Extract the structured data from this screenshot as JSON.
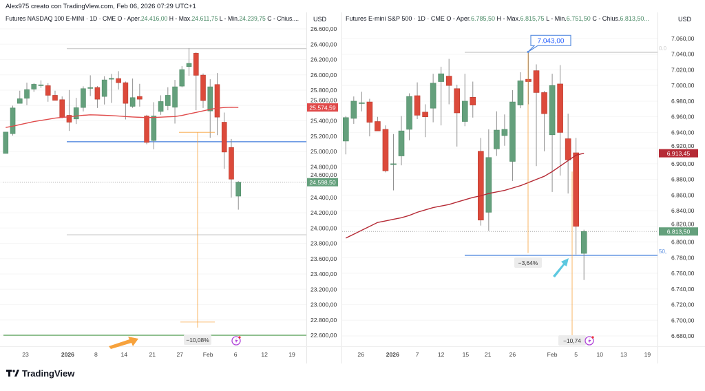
{
  "title": "Alex975 creato con TradingView.com, Feb 06, 2026 07:29 UTC+1",
  "brand": "TradingView",
  "colors": {
    "up": "#64a07c",
    "down": "#dc4a3b",
    "ma_left": "#e04a4a",
    "ma_right": "#b52a35",
    "hline_blue": "#5b8fe0",
    "hline_gray": "#c8c8c8",
    "hline_green": "#6aaa6a",
    "orange": "#f7a23c",
    "cyan": "#5cc8e0"
  },
  "chart_data": [
    {
      "type": "candlestick",
      "symbol": "Futures NASDAQ 100 E-MINI · 1D · CME",
      "ohlc_labels": {
        "o": "O - Aper.",
        "o_val": "24.416,00",
        "h": "H - Max.",
        "h_val": "24.611,75",
        "l": "L - Min.",
        "l_val": "24.239,75",
        "c": "C - Chius...."
      },
      "currency": "USD",
      "ylim": [
        22600,
        26600
      ],
      "y_ticks": [
        "26.600,00",
        "26.400,00",
        "26.200,00",
        "26.000,00",
        "25.800,00",
        "25.600,00",
        "25.400,00",
        "25.200,00",
        "25.000,00",
        "24.800,00",
        "24.600,00",
        "24.400,00",
        "24.200,00",
        "24.000,00",
        "23.800,00",
        "23.600,00",
        "23.400,00",
        "23.200,00",
        "23.000,00",
        "22.800,00",
        "22.600,00"
      ],
      "x_ticks": [
        {
          "label": "23",
          "idx": 2.8,
          "bold": false
        },
        {
          "label": "2026",
          "idx": 8.8,
          "bold": true
        },
        {
          "label": "8",
          "idx": 12.8,
          "bold": false
        },
        {
          "label": "14",
          "idx": 16.8,
          "bold": false
        },
        {
          "label": "21",
          "idx": 20.8,
          "bold": false
        },
        {
          "label": "27",
          "idx": 24.7,
          "bold": false
        },
        {
          "label": "Feb",
          "idx": 28.7,
          "bold": false
        },
        {
          "label": "6",
          "idx": 32.6,
          "bold": false
        },
        {
          "label": "12",
          "idx": 36.7,
          "bold": false
        },
        {
          "label": "19",
          "idx": 40.6,
          "bold": false
        }
      ],
      "candles": [
        [
          24974,
          25253,
          24974,
          25253
        ],
        [
          25232,
          25598,
          25208,
          25568
        ],
        [
          25628,
          25793,
          25628,
          25688
        ],
        [
          25694,
          25898,
          25604,
          25808
        ],
        [
          25814,
          25892,
          25778,
          25877
        ],
        [
          25868,
          25928,
          25829,
          25870
        ],
        [
          25859,
          25892,
          25649,
          25733
        ],
        [
          25733,
          25793,
          25667,
          25667
        ],
        [
          25676,
          25718,
          25433,
          25448
        ],
        [
          25472,
          25802,
          25268,
          25382
        ],
        [
          25424,
          25700,
          25358,
          25571
        ],
        [
          25574,
          25850,
          25523,
          25820
        ],
        [
          25830,
          25994,
          25724,
          25834
        ],
        [
          25835,
          25853,
          25568,
          25682
        ],
        [
          25718,
          25982,
          25613,
          25934
        ],
        [
          25950,
          26012,
          25634,
          25954
        ],
        [
          25952,
          26048,
          25808,
          25898
        ],
        [
          25898,
          25913,
          25418,
          25628
        ],
        [
          25589,
          25952,
          25568,
          25703
        ],
        [
          25718,
          25883,
          25586,
          25682
        ],
        [
          25463,
          25478,
          25094,
          25118
        ],
        [
          25142,
          25643,
          25028,
          25463
        ],
        [
          25523,
          25733,
          25478,
          25652
        ],
        [
          25598,
          25838,
          25538,
          25733
        ],
        [
          25577,
          25934,
          25364,
          25844
        ],
        [
          25853,
          26114,
          25838,
          26069
        ],
        [
          26108,
          26348,
          25988,
          26150
        ],
        [
          26282,
          26294,
          25538,
          25994
        ],
        [
          25997,
          26018,
          25568,
          25664
        ],
        [
          25529,
          25943,
          25178,
          25844
        ],
        [
          25874,
          26024,
          25214,
          25448
        ],
        [
          25382,
          25508,
          24773,
          24992
        ],
        [
          25052,
          25163,
          24398,
          24638
        ],
        [
          24416,
          24611.75,
          24239.75,
          24598.5
        ]
      ],
      "ma": [
        25313,
        25330,
        25350,
        25370,
        25390,
        25405,
        25420,
        25435,
        25445,
        25452,
        25462,
        25472,
        25478,
        25476,
        25472,
        25468,
        25462,
        25456,
        25450,
        25446,
        25442,
        25444,
        25448,
        25452,
        25456,
        25470,
        25490,
        25510,
        25530,
        25550,
        25565,
        25574,
        25577,
        25574.59
      ],
      "last_price": "24.598,50",
      "last_value": 24598.5,
      "ma_label": "25.574,59",
      "ma_value": 25574.59,
      "hlines": [
        {
          "value": 26342,
          "color": "gray"
        },
        {
          "value": 25127,
          "color": "blue"
        },
        {
          "value": 23912,
          "color": "gray"
        },
        {
          "value": 22600,
          "color": "green",
          "full": true
        }
      ],
      "measure": {
        "label": "−10,08%",
        "from": 25250,
        "to": 22700
      }
    },
    {
      "type": "candlestick",
      "symbol": "Futures E-mini S&P 500 · 1D · CME",
      "ohlc_labels": {
        "o": "O - Aper.",
        "o_val": "6.785,50",
        "h": "H - Max.",
        "h_val": "6.815,75",
        "l": "L - Min.",
        "l_val": "6.751,50",
        "c": "C - Chius.",
        "c_val": "6.813,50..."
      },
      "currency": "USD",
      "ylim": [
        6680,
        7060
      ],
      "y_ticks": [
        "7.060,00",
        "7.040,00",
        "7.020,00",
        "7.000,00",
        "6.980,00",
        "6.960,00",
        "6.940,00",
        "6.920,00",
        "6.900,00",
        "6.880,00",
        "6.860,00",
        "6.840,00",
        "6.820,00",
        "6.800,00",
        "6.780,00",
        "6.760,00",
        "6.740,00",
        "6.720,00",
        "6.700,00",
        "6.680,00"
      ],
      "x_ticks": [
        {
          "label": "26",
          "idx": 1.9,
          "bold": false
        },
        {
          "label": "2026",
          "idx": 5.9,
          "bold": true
        },
        {
          "label": "7",
          "idx": 9,
          "bold": false
        },
        {
          "label": "12",
          "idx": 12,
          "bold": false
        },
        {
          "label": "15",
          "idx": 15.1,
          "bold": false
        },
        {
          "label": "21",
          "idx": 17.9,
          "bold": false
        },
        {
          "label": "26",
          "idx": 21,
          "bold": false
        },
        {
          "label": "Feb",
          "idx": 26,
          "bold": false
        },
        {
          "label": "5",
          "idx": 29,
          "bold": false
        },
        {
          "label": "10",
          "idx": 32,
          "bold": false
        },
        {
          "label": "13",
          "idx": 35,
          "bold": false
        },
        {
          "label": "19",
          "idx": 38,
          "bold": false
        }
      ],
      "candles": [
        [
          6929,
          6961,
          6912,
          6959
        ],
        [
          6958,
          6986,
          6951,
          6980
        ],
        [
          6978,
          6992,
          6967,
          6978
        ],
        [
          6979,
          6983,
          6935,
          6953
        ],
        [
          6954,
          6960,
          6942,
          6942
        ],
        [
          6944,
          6949,
          6889,
          6891
        ],
        [
          6900,
          6938,
          6866,
          6900
        ],
        [
          6910,
          6961,
          6898,
          6942
        ],
        [
          6944,
          6990,
          6930,
          6986
        ],
        [
          6987,
          7004,
          6957,
          6962
        ],
        [
          6966,
          6976,
          6934,
          6960
        ],
        [
          6971,
          7015,
          6953,
          7003
        ],
        [
          7005,
          7024,
          6949,
          7015
        ],
        [
          7012,
          7034,
          6976,
          7000
        ],
        [
          6996,
          7001,
          6922,
          6965
        ],
        [
          6954,
          7015,
          6948,
          6980
        ],
        [
          6985,
          7005,
          6959,
          6975
        ],
        [
          6916,
          6933,
          6821,
          6828
        ],
        [
          6838,
          6944,
          6814,
          6908
        ],
        [
          6919,
          6967,
          6910,
          6943
        ],
        [
          6936,
          6963,
          6923,
          6944
        ],
        [
          6903,
          6994,
          6878,
          6979
        ],
        [
          6975,
          7017,
          6971,
          7006
        ],
        [
          7008,
          7043,
          6976,
          7005
        ],
        [
          7019,
          7027,
          6897,
          6991
        ],
        [
          6991,
          6993,
          6916,
          6964
        ],
        [
          6937,
          7015,
          6864,
          7000
        ],
        [
          7002,
          7026,
          6885,
          6940
        ],
        [
          6932,
          6964,
          6862,
          6905
        ],
        [
          6914,
          6933,
          6784,
          6820
        ],
        [
          6785.5,
          6815.75,
          6751.5,
          6813.5
        ]
      ],
      "ma": [
        6805,
        6810,
        6815,
        6820,
        6825,
        6827,
        6829,
        6831,
        6834,
        6838,
        6841,
        6844,
        6846,
        6848,
        6851,
        6854,
        6857,
        6859,
        6862,
        6864,
        6866,
        6869,
        6872,
        6876,
        6880,
        6884,
        6890,
        6897,
        6904,
        6911,
        6913.45
      ],
      "last_price": "6.813,50",
      "last_value": 6813.5,
      "ma_label": "6.913,45",
      "ma_value": 6913.45,
      "hlines": [
        {
          "value": 7042.4,
          "color": "gray",
          "label": "0.0"
        },
        {
          "value": 6783,
          "color": "blue",
          "label": "50,"
        }
      ],
      "callout": {
        "label": "7.043,00",
        "value": 7043
      },
      "measures": [
        {
          "label": "−3,64%",
          "from": 7042,
          "to": 6786
        },
        {
          "label": "−10,74",
          "from": 6890,
          "to": 6670
        }
      ]
    }
  ]
}
